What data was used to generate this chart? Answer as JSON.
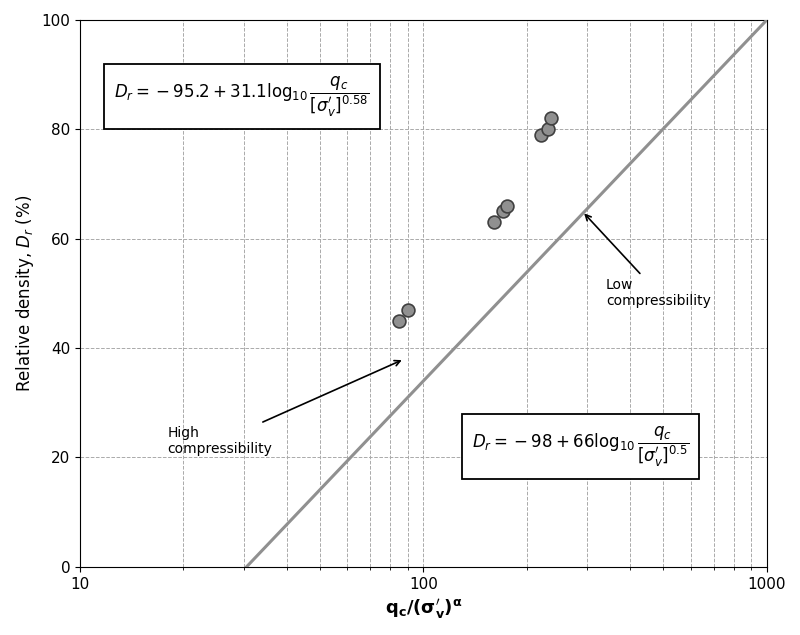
{
  "title": "",
  "xlabel": "q_c/(sigma_v)^alpha",
  "ylabel": "Relative density, D_r (%)",
  "xlim": [
    10,
    1000
  ],
  "ylim": [
    0,
    100
  ],
  "yticks": [
    0,
    20,
    40,
    60,
    80,
    100
  ],
  "line1_color": "#000000",
  "line2_color": "#909090",
  "line1_intercept": -95.2,
  "line1_slope": 31.1,
  "line2_intercept": -98.0,
  "line2_slope": 66.0,
  "data_points": [
    [
      85,
      45
    ],
    [
      90,
      47
    ],
    [
      160,
      63
    ],
    [
      170,
      65
    ],
    [
      175,
      66
    ],
    [
      220,
      79
    ],
    [
      230,
      80
    ],
    [
      235,
      82
    ]
  ],
  "point_color": "#909090",
  "point_edge_color": "#404040",
  "point_size": 85,
  "background_color": "#ffffff",
  "grid_color": "#aaaaaa"
}
